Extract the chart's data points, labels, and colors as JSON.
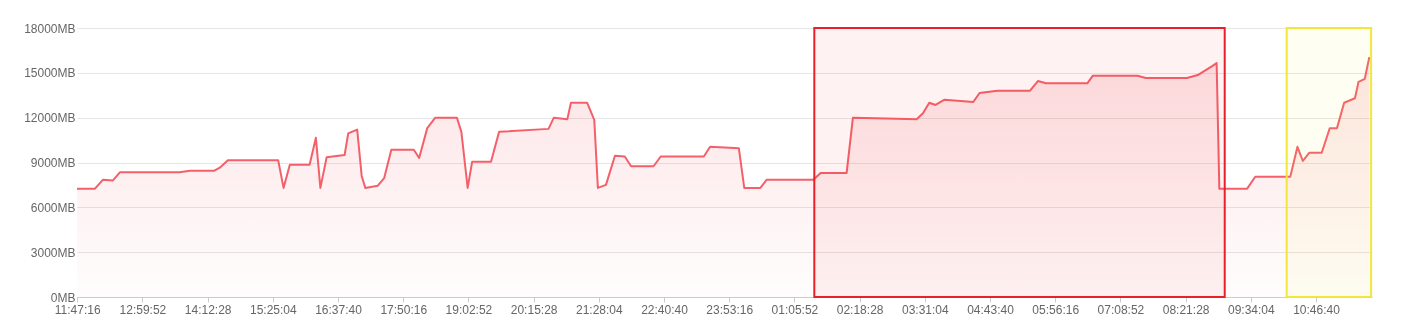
{
  "chart_data": {
    "type": "area",
    "marker": "none",
    "grid": "y",
    "xlim": [
      "--01-01T11:47",
      "--01-02T11:49"
    ],
    "xticks": [
      {
        "value": "--01-01T11:47:16",
        "label": "11:47:16"
      },
      {
        "value": "--01-01T12:59:52",
        "label": "12:59:52"
      },
      {
        "value": "--01-01T14:12:28",
        "label": "14:12:28"
      },
      {
        "value": "--01-01T15:25:04",
        "label": "15:25:04"
      },
      {
        "value": "--01-01T16:37:40",
        "label": "16:37:40"
      },
      {
        "value": "--01-01T17:50:16",
        "label": "17:50:16"
      },
      {
        "value": "--01-01T19:02:52",
        "label": "19:02:52"
      },
      {
        "value": "--01-01T20:15:28",
        "label": "20:15:28"
      },
      {
        "value": "--01-01T21:28:04",
        "label": "21:28:04"
      },
      {
        "value": "--01-01T22:40:40",
        "label": "22:40:40"
      },
      {
        "value": "--01-01T23:53:16",
        "label": "23:53:16"
      },
      {
        "value": "--01-02T01:05:52",
        "label": "01:05:52"
      },
      {
        "value": "--01-02T02:18:28",
        "label": "02:18:28"
      },
      {
        "value": "--01-02T03:31:04",
        "label": "03:31:04"
      },
      {
        "value": "--01-02T04:43:40",
        "label": "04:43:40"
      },
      {
        "value": "--01-02T05:56:16",
        "label": "05:56:16"
      },
      {
        "value": "--01-02T07:08:52",
        "label": "07:08:52"
      },
      {
        "value": "--01-02T08:21:28",
        "label": "08:21:28"
      },
      {
        "value": "--01-02T09:34:04",
        "label": "09:34:04"
      },
      {
        "value": "--01-02T10:46:40",
        "label": "10:46:40"
      }
    ],
    "ylim": [
      0,
      18000
    ],
    "yticks": [
      {
        "value": 0,
        "label": "0MB"
      },
      {
        "value": 3000,
        "label": "3000MB"
      },
      {
        "value": 6000,
        "label": "6000MB"
      },
      {
        "value": 9000,
        "label": "9000MB"
      },
      {
        "value": 12000,
        "label": "12000MB"
      },
      {
        "value": 15000,
        "label": "15000MB"
      },
      {
        "value": 18000,
        "label": "18000MB"
      }
    ],
    "bands": [
      {
        "axis": "x",
        "from": "--01-02T01:28",
        "to": "--01-02T09:05",
        "color": "#e8202a"
      },
      {
        "axis": "x",
        "from": "--01-02T10:14",
        "to": "--01-02T11:48",
        "color": "#f2e63a"
      }
    ],
    "x": [
      "--01-01T11:47",
      "--01-01T12:07",
      "--01-01T12:16",
      "--01-01T12:27",
      "--01-01T12:35",
      "--01-01T13:41",
      "--01-01T13:53",
      "--01-01T14:20",
      "--01-01T14:26",
      "--01-01T14:35",
      "--01-01T15:31",
      "--01-01T15:37",
      "--01-01T15:44",
      "--01-01T16:06",
      "--01-01T16:13",
      "--01-01T16:18",
      "--01-01T16:25",
      "--01-01T16:45",
      "--01-01T16:49",
      "--01-01T16:59",
      "--01-01T17:04",
      "--01-01T17:08",
      "--01-01T17:22",
      "--01-01T17:29",
      "--01-01T17:37",
      "--01-01T18:02",
      "--01-01T18:08",
      "--01-01T18:17",
      "--01-01T18:26",
      "--01-01T18:50",
      "--01-01T18:55",
      "--01-01T19:02",
      "--01-01T19:07",
      "--01-01T19:28",
      "--01-01T19:37",
      "--01-01T20:32",
      "--01-01T20:38",
      "--01-01T20:53",
      "--01-01T20:57",
      "--01-01T21:15",
      "--01-01T21:23",
      "--01-01T21:27",
      "--01-01T21:36",
      "--01-01T21:46",
      "--01-01T21:57",
      "--01-01T22:04",
      "--01-01T22:29",
      "--01-01T22:37",
      "--01-01T23:25",
      "--01-01T23:32",
      "--01-02T00:04",
      "--01-02T00:10",
      "--01-02T00:28",
      "--01-02T00:35",
      "--01-02T01:27",
      "--01-02T01:35",
      "--01-02T02:04",
      "--01-02T02:11",
      "--01-02T02:48",
      "--01-02T03:22",
      "--01-02T03:29",
      "--01-02T03:36",
      "--01-02T03:43",
      "--01-02T03:53",
      "--01-02T04:25",
      "--01-02T04:32",
      "--01-02T04:52",
      "--01-02T05:28",
      "--01-02T05:37",
      "--01-02T05:46",
      "--01-02T06:32",
      "--01-02T06:38",
      "--01-02T07:28",
      "--01-02T07:37",
      "--01-02T08:23",
      "--01-02T08:35",
      "--01-02T08:51",
      "--01-02T08:56",
      "--01-02T08:59",
      "--01-02T09:30",
      "--01-02T09:39",
      "--01-02T10:18",
      "--01-02T10:26",
      "--01-02T10:32",
      "--01-02T10:39",
      "--01-02T10:53",
      "--01-02T11:02",
      "--01-02T11:10",
      "--01-02T11:18",
      "--01-02T11:30",
      "--01-02T11:34",
      "--01-02T11:41",
      "--01-02T11:46"
    ],
    "series": [
      {
        "color": "#f4606a",
        "values": [
          7250,
          7250,
          7850,
          7800,
          8350,
          8350,
          8450,
          8450,
          8650,
          9150,
          9150,
          7300,
          8850,
          8850,
          10650,
          7300,
          9350,
          9500,
          10950,
          11200,
          8100,
          7300,
          7450,
          7950,
          9850,
          9850,
          9300,
          11300,
          12000,
          12000,
          11050,
          7300,
          9050,
          9050,
          11050,
          11250,
          12000,
          11900,
          13000,
          13000,
          11850,
          7300,
          7500,
          9450,
          9400,
          8750,
          8750,
          9400,
          9400,
          10050,
          9950,
          7300,
          7300,
          7850,
          7850,
          8300,
          8300,
          12000,
          11950,
          11900,
          12300,
          13000,
          12850,
          13200,
          13050,
          13650,
          13800,
          13800,
          14450,
          14300,
          14300,
          14800,
          14800,
          14650,
          14650,
          14850,
          15450,
          15650,
          7250,
          7250,
          8050,
          8050,
          10050,
          9100,
          9650,
          9650,
          11300,
          11300,
          13000,
          13300,
          14400,
          14600,
          16050
        ]
      }
    ]
  }
}
